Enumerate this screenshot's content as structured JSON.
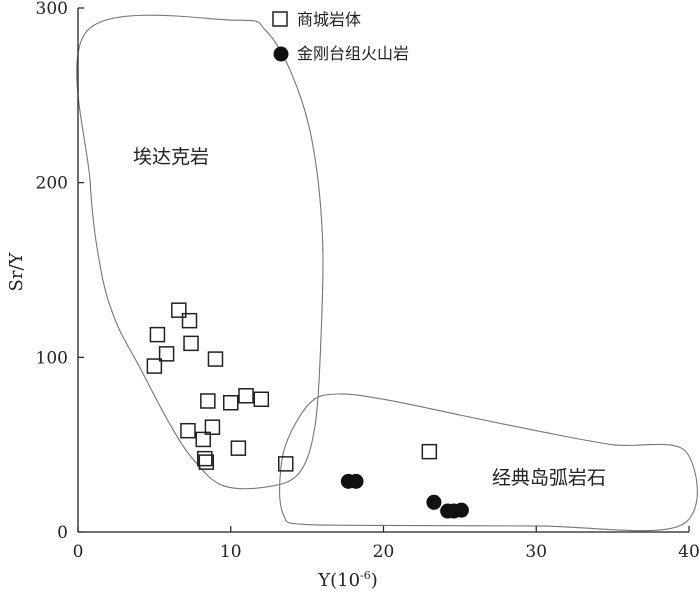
{
  "chart_data": {
    "type": "scatter",
    "xlabel": "Y(10",
    "xlabel_sup": "-6",
    "xlabel_close": ")",
    "ylabel": "Sr/Y",
    "xlim": [
      0,
      40
    ],
    "ylim": [
      0,
      300
    ],
    "x_ticks": [
      0,
      10,
      20,
      30,
      40
    ],
    "y_ticks": [
      0,
      100,
      200,
      300
    ],
    "legend_position": "top-center",
    "series": [
      {
        "name": "商城岩体",
        "marker": "open-square",
        "color": "#222222",
        "points": [
          [
            6.6,
            127
          ],
          [
            7.3,
            121
          ],
          [
            5.2,
            113
          ],
          [
            5.8,
            102
          ],
          [
            7.4,
            108
          ],
          [
            5.0,
            95
          ],
          [
            9.0,
            99
          ],
          [
            8.5,
            75
          ],
          [
            10.0,
            74
          ],
          [
            11.0,
            78
          ],
          [
            12.0,
            76
          ],
          [
            7.2,
            58
          ],
          [
            8.8,
            60
          ],
          [
            8.2,
            53
          ],
          [
            8.3,
            42
          ],
          [
            8.4,
            40
          ],
          [
            10.5,
            48
          ],
          [
            13.6,
            39
          ],
          [
            23.0,
            46
          ]
        ]
      },
      {
        "name": "金刚台组火山岩",
        "marker": "filled-circle",
        "color": "#111111",
        "points": [
          [
            17.7,
            29
          ],
          [
            18.2,
            29
          ],
          [
            23.3,
            17
          ],
          [
            24.2,
            12
          ],
          [
            24.6,
            12
          ],
          [
            25.1,
            12.5
          ]
        ]
      }
    ],
    "field_labels": {
      "adakite": "埃达克岩",
      "arc": "经典岛弧岩石"
    },
    "field_boundaries": {
      "adakite": [
        [
          0.6,
          287
        ],
        [
          0.8,
          200
        ],
        [
          1.5,
          150
        ],
        [
          2.5,
          120
        ],
        [
          4,
          95
        ],
        [
          6,
          62
        ],
        [
          7.5,
          42
        ],
        [
          9.5,
          26.5
        ],
        [
          12.5,
          26
        ],
        [
          14.5,
          34
        ],
        [
          15.5,
          60
        ],
        [
          15.9,
          110
        ],
        [
          16,
          170
        ],
        [
          15.3,
          225
        ],
        [
          14,
          262
        ],
        [
          12.3,
          287
        ],
        [
          10.3,
          293
        ]
      ],
      "arc": [
        [
          14.5,
          4.5
        ],
        [
          13.5,
          9
        ],
        [
          13.2,
          25
        ],
        [
          13.6,
          50
        ],
        [
          15.2,
          74
        ],
        [
          17,
          79
        ],
        [
          20,
          76
        ],
        [
          25,
          67
        ],
        [
          30,
          58
        ],
        [
          35,
          50
        ],
        [
          39.8,
          46
        ],
        [
          39.5,
          4
        ],
        [
          30,
          3.5
        ],
        [
          20,
          3.8
        ]
      ]
    }
  }
}
